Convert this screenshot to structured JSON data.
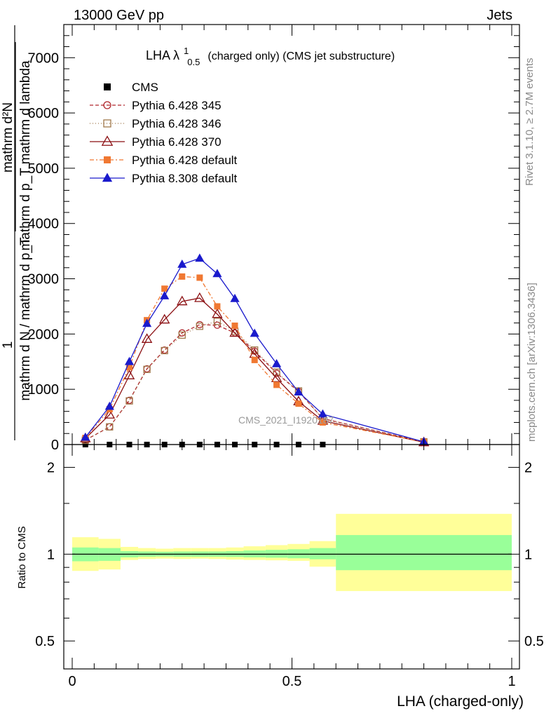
{
  "header": {
    "left": "13000 GeV pp",
    "right": "Jets"
  },
  "side_labels": {
    "rivet": "Rivet 3.1.10, ≥ 2.7M events",
    "mcplots": "mcplots.cern.ch [arXiv:1306.3436]"
  },
  "watermark": "CMS_2021_I1920187",
  "chart_data": [
    {
      "type": "line",
      "title_main": "LHA λ",
      "title_sup": "1",
      "title_sub": "0.5",
      "title_rest": "(charged only) (CMS jet substructure)",
      "xlim": [
        -0.02,
        1.02
      ],
      "ylim": [
        0,
        7600
      ],
      "y_ticks": [
        0,
        1000,
        2000,
        3000,
        4000,
        5000,
        6000,
        7000
      ],
      "y_tick_labels": [
        "0",
        "1000",
        "2000",
        "3000",
        "4000",
        "5000",
        "6000",
        "7000"
      ],
      "ylabel": {
        "frac_num": "1",
        "frac_den": "mathrm d N / mathrm d p_T",
        "rhs_num": "mathrm d²N",
        "rhs_den": "mathrm d p_T mathrm d lambda"
      },
      "legend_position": "top-left",
      "series": [
        {
          "name": "CMS",
          "color": "#000000",
          "marker": "square-filled",
          "x": [
            0.03,
            0.085,
            0.13,
            0.17,
            0.21,
            0.25,
            0.29,
            0.33,
            0.37,
            0.415,
            0.465,
            0.515,
            0.57
          ],
          "y": [
            0,
            0,
            0,
            0,
            0,
            0,
            0,
            0,
            0,
            0,
            0,
            0,
            0
          ]
        },
        {
          "name": "Pythia 6.428 345",
          "color": "#b0262c",
          "marker": "circle-open",
          "dash": "5,3",
          "x": [
            0.03,
            0.085,
            0.13,
            0.17,
            0.21,
            0.25,
            0.29,
            0.33,
            0.37,
            0.415,
            0.465,
            0.515,
            0.57,
            0.8
          ],
          "y": [
            80,
            320,
            800,
            1370,
            1710,
            2020,
            2170,
            2160,
            2020,
            1690,
            1290,
            960,
            470,
            50
          ]
        },
        {
          "name": "Pythia 6.428 346",
          "color": "#a0784c",
          "marker": "square-open",
          "dash": "1,3",
          "x": [
            0.03,
            0.085,
            0.13,
            0.17,
            0.21,
            0.25,
            0.29,
            0.33,
            0.37,
            0.415,
            0.465,
            0.515,
            0.57,
            0.8
          ],
          "y": [
            80,
            320,
            790,
            1360,
            1700,
            1980,
            2140,
            2230,
            2050,
            1710,
            1310,
            970,
            460,
            50
          ]
        },
        {
          "name": "Pythia 6.428 370",
          "color": "#8b0f12",
          "marker": "triangle-open",
          "dash": "",
          "x": [
            0.03,
            0.085,
            0.13,
            0.17,
            0.21,
            0.25,
            0.29,
            0.33,
            0.37,
            0.415,
            0.465,
            0.515,
            0.57,
            0.8
          ],
          "y": [
            110,
            540,
            1250,
            1910,
            2260,
            2590,
            2650,
            2360,
            2020,
            1640,
            1200,
            780,
            430,
            40
          ]
        },
        {
          "name": "Pythia 6.428 default",
          "color": "#f07832",
          "marker": "square-filled",
          "dash": "6,3,2,3",
          "x": [
            0.03,
            0.085,
            0.13,
            0.17,
            0.21,
            0.25,
            0.29,
            0.33,
            0.37,
            0.415,
            0.465,
            0.515,
            0.57,
            0.8
          ],
          "y": [
            120,
            640,
            1400,
            2250,
            2820,
            3040,
            3020,
            2500,
            2150,
            1530,
            1080,
            740,
            400,
            50
          ]
        },
        {
          "name": "Pythia 8.308 default",
          "color": "#1a1acc",
          "marker": "triangle-filled",
          "dash": "",
          "x": [
            0.03,
            0.085,
            0.13,
            0.17,
            0.21,
            0.25,
            0.29,
            0.33,
            0.37,
            0.415,
            0.465,
            0.515,
            0.57,
            0.8
          ],
          "y": [
            130,
            690,
            1500,
            2190,
            2690,
            3260,
            3370,
            3090,
            2640,
            2010,
            1460,
            950,
            550,
            50
          ]
        }
      ]
    },
    {
      "type": "area",
      "ylabel": "Ratio to CMS",
      "xlabel": "LHA (charged-only)",
      "scale": "log",
      "ylim": [
        0.4,
        2.4
      ],
      "y_ticks": [
        0.5,
        1,
        2
      ],
      "y_tick_labels": [
        "0.5",
        "1",
        "2"
      ],
      "x_ticks": [
        0,
        0.5,
        1
      ],
      "x_tick_labels": [
        "0",
        "0.5",
        "1"
      ],
      "reference_line": 1,
      "bands": [
        {
          "name": "yellow-band",
          "color": "#ffff99",
          "bins": [
            [
              0.0,
              0.06
            ],
            [
              0.06,
              0.11
            ],
            [
              0.11,
              0.15
            ],
            [
              0.15,
              0.19
            ],
            [
              0.19,
              0.23
            ],
            [
              0.23,
              0.27
            ],
            [
              0.27,
              0.31
            ],
            [
              0.31,
              0.35
            ],
            [
              0.35,
              0.39
            ],
            [
              0.39,
              0.44
            ],
            [
              0.44,
              0.49
            ],
            [
              0.49,
              0.54
            ],
            [
              0.54,
              0.6
            ],
            [
              0.6,
              1.0
            ]
          ],
          "low": [
            0.875,
            0.885,
            0.955,
            0.962,
            0.965,
            0.962,
            0.965,
            0.962,
            0.958,
            0.955,
            0.952,
            0.948,
            0.905,
            0.745
          ],
          "high": [
            1.145,
            1.13,
            1.06,
            1.05,
            1.045,
            1.05,
            1.05,
            1.05,
            1.055,
            1.065,
            1.075,
            1.085,
            1.11,
            1.38
          ]
        },
        {
          "name": "green-band",
          "color": "#99ff99",
          "bins": [
            [
              0.0,
              0.06
            ],
            [
              0.06,
              0.11
            ],
            [
              0.11,
              0.15
            ],
            [
              0.15,
              0.19
            ],
            [
              0.19,
              0.23
            ],
            [
              0.23,
              0.27
            ],
            [
              0.27,
              0.31
            ],
            [
              0.31,
              0.35
            ],
            [
              0.35,
              0.39
            ],
            [
              0.39,
              0.44
            ],
            [
              0.44,
              0.49
            ],
            [
              0.49,
              0.54
            ],
            [
              0.54,
              0.6
            ],
            [
              0.6,
              1.0
            ]
          ],
          "low": [
            0.945,
            0.948,
            0.975,
            0.98,
            0.982,
            0.98,
            0.98,
            0.98,
            0.978,
            0.975,
            0.972,
            0.968,
            0.96,
            0.88
          ],
          "high": [
            1.055,
            1.05,
            1.025,
            1.022,
            1.02,
            1.022,
            1.022,
            1.022,
            1.025,
            1.03,
            1.035,
            1.04,
            1.05,
            1.165
          ]
        }
      ]
    }
  ]
}
